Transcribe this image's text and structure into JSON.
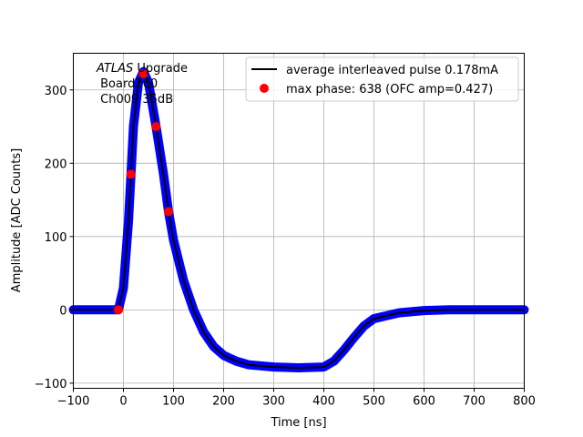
{
  "chart_data": {
    "type": "line",
    "xlabel": "Time [ns]",
    "ylabel": "Amplitude [ADC Counts]",
    "xlim": [
      -100,
      800
    ],
    "ylim": [
      -107,
      350
    ],
    "xticks": [
      -100,
      0,
      100,
      200,
      300,
      400,
      500,
      600,
      700,
      800
    ],
    "yticks": [
      -100,
      0,
      100,
      200,
      300
    ],
    "grid": true,
    "legend_position": "top-right",
    "annotation": {
      "italic": "ATLAS",
      "rest": " Upgrade",
      "line2": " Board260",
      "line3": " Ch009 35dB"
    },
    "series": [
      {
        "name": "average interleaved pulse 0.178mA",
        "color": "#000000",
        "band_color": "#0000ff",
        "x": [
          -100,
          -10,
          0,
          10,
          15,
          20,
          30,
          40,
          50,
          65,
          80,
          90,
          100,
          120,
          140,
          160,
          180,
          200,
          225,
          250,
          300,
          350,
          400,
          420,
          440,
          460,
          480,
          500,
          550,
          600,
          650,
          800
        ],
        "y": [
          0,
          0,
          30,
          120,
          185,
          250,
          310,
          325,
          310,
          250,
          185,
          134,
          95,
          40,
          0,
          -30,
          -50,
          -62,
          -70,
          -75,
          -78,
          -79,
          -78,
          -70,
          -55,
          -38,
          -22,
          -12,
          -4,
          -1,
          0,
          0
        ]
      },
      {
        "name": "max phase: 638 (OFC amp=0.427)",
        "color": "#ff0000",
        "x": [
          -10,
          15,
          40,
          65,
          90
        ],
        "y": [
          0,
          185,
          322,
          250,
          134
        ]
      }
    ]
  }
}
